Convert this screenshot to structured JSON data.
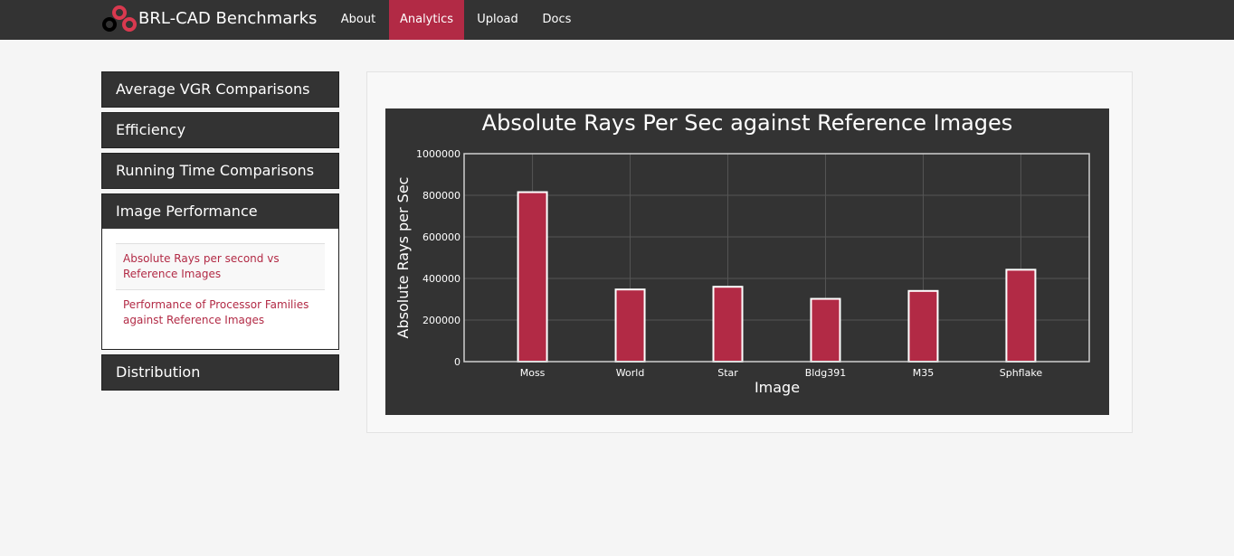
{
  "navbar": {
    "brand": "BRL-CAD Benchmarks",
    "items": [
      {
        "label": "About",
        "active": false
      },
      {
        "label": "Analytics",
        "active": true
      },
      {
        "label": "Upload",
        "active": false
      },
      {
        "label": "Docs",
        "active": false
      }
    ]
  },
  "sidebar": {
    "sections": [
      {
        "label": "Average VGR Comparisons"
      },
      {
        "label": "Efficiency"
      },
      {
        "label": "Running Time Comparisons"
      },
      {
        "label": "Image Performance"
      },
      {
        "label": "Distribution"
      }
    ],
    "image_performance_links": [
      {
        "label": "Absolute Rays per second vs Reference Images"
      },
      {
        "label": "Performance of Processor Families against Reference Images"
      }
    ]
  },
  "colors": {
    "navbar_bg": "#333333",
    "accent": "#b22a45",
    "bar_fill": "#b22a45",
    "bar_stroke": "#ffffff"
  },
  "chart_data": {
    "type": "bar",
    "title": "Absolute Rays Per Sec against Reference Images",
    "xlabel": "Image",
    "ylabel": "Absolute Rays per Sec",
    "categories": [
      "Moss",
      "World",
      "Star",
      "Bldg391",
      "M35",
      "Sphflake"
    ],
    "values": [
      815000,
      347000,
      360000,
      302000,
      340000,
      442000
    ],
    "ylim": [
      0,
      1000000
    ],
    "yticks": [
      "0",
      "200000",
      "400000",
      "600000",
      "800000",
      "1000000"
    ],
    "grid": true
  }
}
